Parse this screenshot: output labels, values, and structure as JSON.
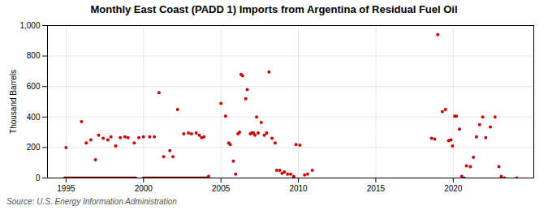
{
  "chart_data": {
    "type": "scatter",
    "title": "Monthly East Coast (PADD 1) Imports from Argentina of Residual Fuel Oil",
    "ylabel": "Thousand Barrels",
    "annotations": [
      "Source: U.S. Energy Information Administration"
    ],
    "xlim": [
      1993.8,
      2025.2
    ],
    "xticks": [
      1995,
      2000,
      2005,
      2010,
      2015,
      2020
    ],
    "ylim": [
      0,
      1000
    ],
    "yticks": [
      0,
      200,
      400,
      600,
      800,
      {
        "value": 1000,
        "label": "1,000"
      }
    ],
    "grid": true,
    "series": [
      {
        "type": "scatter",
        "color": "#cc0000",
        "x": [
          1995.0,
          1996.0,
          1996.3,
          1996.6,
          1996.9,
          1997.1,
          1997.4,
          1997.7,
          1997.9,
          1998.2,
          1998.5,
          1998.8,
          1999.0,
          1999.4,
          1999.7,
          2000.0,
          2000.4,
          2000.7,
          2001.0,
          2001.3,
          2001.7,
          2001.9,
          2002.2,
          2002.6,
          2002.9,
          2003.1,
          2003.4,
          2003.6,
          2003.75,
          2003.9,
          2004.2,
          2005.0,
          2005.3,
          2005.5,
          2005.6,
          2005.8,
          2005.95,
          2006.1,
          2006.2,
          2006.3,
          2006.4,
          2006.6,
          2006.7,
          2006.9,
          2007.0,
          2007.1,
          2007.2,
          2007.3,
          2007.4,
          2007.6,
          2007.8,
          2007.95,
          2008.1,
          2008.3,
          2008.5,
          2008.6,
          2008.8,
          2008.95,
          2009.1,
          2009.3,
          2009.5,
          2009.7,
          2009.85,
          2010.1,
          2010.4,
          2010.6,
          2010.9,
          2018.6,
          2018.8,
          2019.0,
          2019.3,
          2019.5,
          2019.7,
          2019.85,
          2019.95,
          2020.1,
          2020.2,
          2020.4,
          2020.55,
          2020.7,
          2020.85,
          2021.1,
          2021.3,
          2021.5,
          2021.7,
          2021.9,
          2022.1,
          2022.4,
          2022.7,
          2022.95,
          2023.1,
          2023.3,
          2024.1
        ],
        "values": [
          200,
          370,
          230,
          250,
          120,
          280,
          260,
          250,
          270,
          210,
          265,
          270,
          265,
          230,
          265,
          270,
          270,
          270,
          560,
          140,
          180,
          140,
          450,
          290,
          295,
          290,
          295,
          280,
          265,
          270,
          10,
          490,
          405,
          230,
          220,
          110,
          25,
          290,
          300,
          680,
          670,
          520,
          580,
          290,
          295,
          295,
          280,
          400,
          295,
          365,
          280,
          295,
          695,
          260,
          230,
          50,
          50,
          30,
          40,
          25,
          25,
          10,
          220,
          215,
          20,
          25,
          50,
          260,
          255,
          940,
          435,
          450,
          245,
          250,
          210,
          405,
          405,
          320,
          10,
          0,
          80,
          75,
          135,
          270,
          350,
          400,
          265,
          335,
          400,
          75,
          10,
          0,
          0
        ]
      },
      {
        "type": "line",
        "color": "#8b0000",
        "x": [
          1994.9,
          1999.5
        ],
        "values": [
          0,
          0
        ]
      },
      {
        "type": "line",
        "color": "#8b0000",
        "x": [
          2000.0,
          2004.1
        ],
        "values": [
          0,
          0
        ]
      }
    ]
  }
}
